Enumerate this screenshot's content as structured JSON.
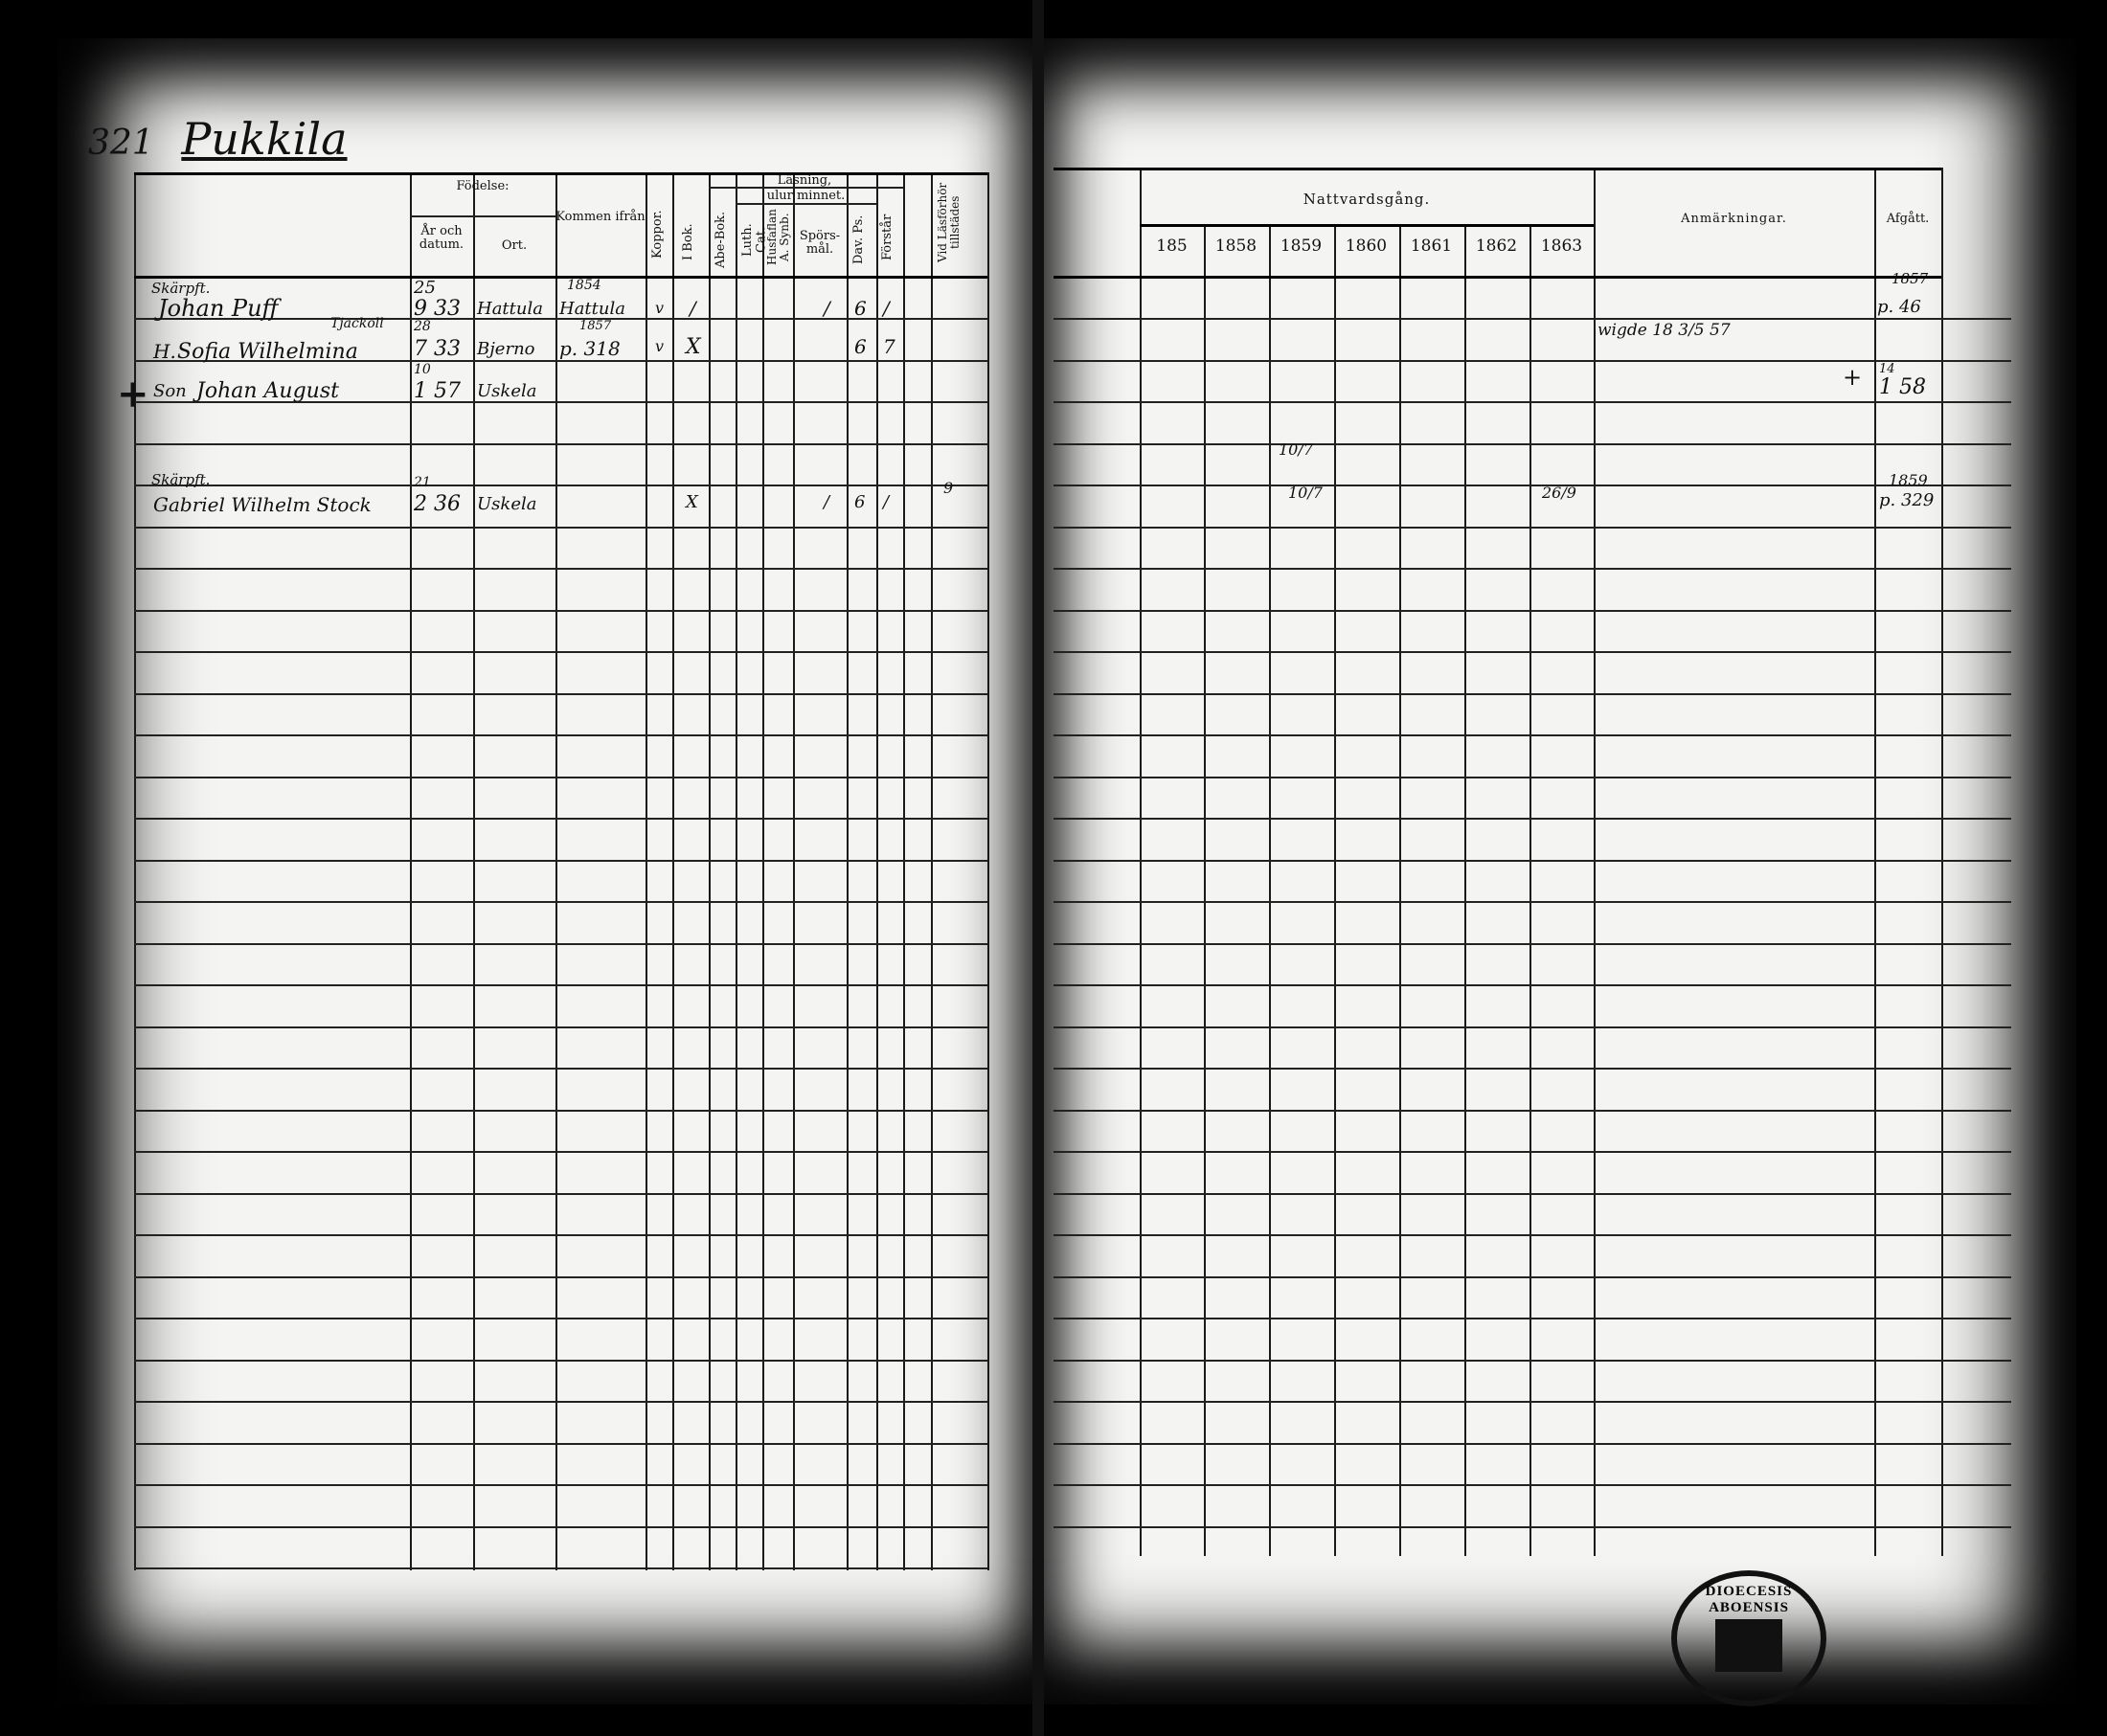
{
  "document": {
    "page_number": "321",
    "village": "Pukkila",
    "left_headers": {
      "fodelse": "Födelse:",
      "ar_och_datum": "År och datum.",
      "ort": "Ort.",
      "kommen_ifran": "Kommen ifrån",
      "koppor": "Koppor.",
      "lasning": "Läsning,",
      "ulur_minnet": "ulur minnet.",
      "bok": "I Bok.",
      "abe_bok": "Abe-Bok.",
      "luth_cat": "Luth. Cat.",
      "husfl": "Husfaflan A. Synb.",
      "spors": "Spörs-mål.",
      "dav_ps": "Dav. Ps.",
      "forstar": "Förstår",
      "vid_lasforhor": "Vid Läsförhör tillstädes"
    },
    "right_headers": {
      "nattvardsgang": "Nattvardsgång.",
      "years": [
        "185",
        "1858",
        "1859",
        "1860",
        "1861",
        "1862",
        "1863"
      ],
      "anmarkningar": "Anmärkningar.",
      "afgatt": "Afgått."
    },
    "entries": [
      {
        "prefix": "Skärpft.",
        "name": "Johan Puff",
        "birth_day": "25",
        "birth_year": "9 33",
        "ort": "Hattula",
        "kommen_year": "1854",
        "kommen": "Hattula",
        "marks": [
          "v",
          "/",
          "/",
          "6",
          "/"
        ],
        "afgatt_year": "1857",
        "afgatt": "p. 46"
      },
      {
        "prefix": "H.",
        "name": "Sofia Wilhelmina",
        "note": "Tjackoll",
        "birth_day": "28",
        "birth_year": "7 33",
        "ort": "Bjerno",
        "kommen_year": "1857",
        "kommen": "p. 318",
        "marks": [
          "v",
          "X",
          "6",
          "7"
        ],
        "remark": "wigde 18 3/5 57"
      },
      {
        "prefix": "Son",
        "name": "Johan August",
        "birth_day": "10",
        "birth_year": "1 57",
        "ort": "Uskela",
        "cross": "+",
        "afgatt_day": "14",
        "afgatt": "1 58"
      },
      {
        "prefix": "Skärpft.",
        "name": "Gabriel Wilhelm Stock",
        "birth_day": "21",
        "birth_year": "2 36",
        "ort": "Uskela",
        "marks": [
          "X",
          "/",
          "6",
          "/"
        ],
        "vid": "9",
        "nattvard_1859": "10/7",
        "nattvard_1863": "26/9",
        "afgatt_year": "1859",
        "afgatt": "p. 329"
      }
    ],
    "extra_nattvard": "10/7",
    "stamp_text": "DIOECESIS ABOENSIS"
  }
}
